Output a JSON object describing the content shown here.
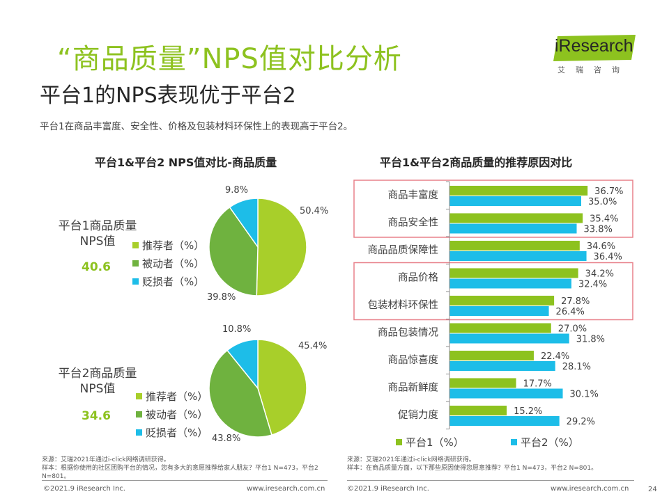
{
  "header": {
    "title": "“商品质量”NPS值对比分析",
    "subtitle_title": "平台1的NPS表现优于平台2",
    "description": "平台1在商品丰富度、安全性、价格及包装材料环保性上的表现高于平台2。"
  },
  "logo": {
    "en": "iResearch",
    "cn": "艾瑞咨询"
  },
  "colors": {
    "green": "#8dc21f",
    "blue": "#1dbde8",
    "olive": "#8dc21f",
    "mid_green": "#6fb23f",
    "highlight_box": "#e8808a"
  },
  "chart_data": [
    {
      "type": "pie",
      "title": "平台1&平台2 NPS值对比-商品质量",
      "charts": [
        {
          "name": "平台1商品质量\nNPS值",
          "name_line1": "平台1商品质量",
          "name_line2": "NPS值",
          "nps": "40.6",
          "slices": [
            {
              "label": "推荐者（%）",
              "value": 50.4,
              "display": "50.4%"
            },
            {
              "label": "被动者（%）",
              "value": 39.8,
              "display": "39.8%"
            },
            {
              "label": "贬损者（%）",
              "value": 9.8,
              "display": "9.8%"
            }
          ]
        },
        {
          "name": "平台2商品质量\nNPS值",
          "name_line1": "平台2商品质量",
          "name_line2": "NPS值",
          "nps": "34.6",
          "slices": [
            {
              "label": "推荐者（%）",
              "value": 45.4,
              "display": "45.4%"
            },
            {
              "label": "被动者（%）",
              "value": 43.8,
              "display": "43.8%"
            },
            {
              "label": "贬损者（%）",
              "value": 10.8,
              "display": "10.8%"
            }
          ]
        }
      ],
      "legend": [
        "推荐者（%）",
        "被动者（%）",
        "贬损者（%）"
      ]
    },
    {
      "type": "bar",
      "orientation": "horizontal",
      "title": "平台1&平台2商品质量的推荐原因对比",
      "categories": [
        "商品丰富度",
        "商品安全性",
        "商品品质保障性",
        "商品价格",
        "包装材料环保性",
        "商品包装情况",
        "商品惊喜度",
        "商品新鲜度",
        "促销力度"
      ],
      "series": [
        {
          "name": "平台1（%）",
          "values": [
            36.7,
            35.4,
            34.6,
            34.2,
            27.8,
            27.0,
            22.4,
            17.7,
            15.2
          ],
          "labels": [
            "36.7%",
            "35.4%",
            "34.6%",
            "34.2%",
            "27.8%",
            "27.0%",
            "22.4%",
            "17.7%",
            "15.2%"
          ]
        },
        {
          "name": "平台2（%）",
          "values": [
            35.0,
            33.8,
            36.4,
            32.4,
            26.4,
            31.8,
            28.1,
            30.1,
            29.2
          ],
          "labels": [
            "35.0%",
            "33.8%",
            "36.4%",
            "32.4%",
            "26.4%",
            "31.8%",
            "28.1%",
            "30.1%",
            "29.2%"
          ]
        }
      ],
      "xlim": [
        0,
        40
      ],
      "highlight_groups": [
        [
          "商品丰富度",
          "商品安全性"
        ],
        [
          "商品价格",
          "包装材料环保性"
        ]
      ]
    }
  ],
  "footer": {
    "left_source": "来源：艾瑞2021年通过i-click网络调研获得。",
    "left_sample": "样本：根据你使用的社区团购平台的情况，您有多大的意愿推荐给家人朋友？平台1 N=473，平台2 N=801。",
    "left_copyright": "©2021.9 iResearch Inc.",
    "left_url": "www.iresearch.com.cn",
    "right_source": "来源：艾瑞2021年通过i-click网络调研获得。",
    "right_sample": "样本：在商品质量方面，以下那些原因使得您愿意推荐？平台1 N=473，平台2 N=801。",
    "right_copyright": "©2021.9 iResearch Inc.",
    "right_url": "www.iresearch.com.cn",
    "page": "24"
  }
}
